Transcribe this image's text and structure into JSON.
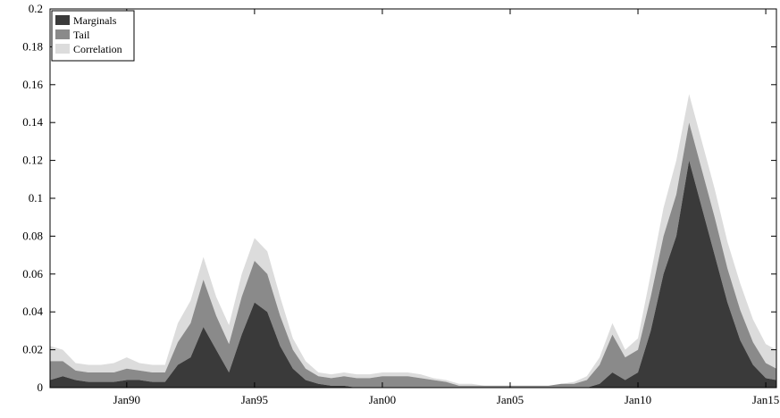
{
  "chart_data": {
    "type": "area",
    "stacked": true,
    "x_unit": "month",
    "x_ticks": [
      "Jan90",
      "Jan95",
      "Jan00",
      "Jan05",
      "Jan10",
      "Jan15"
    ],
    "x_tick_dates": [
      "1990-01",
      "1995-01",
      "2000-01",
      "2005-01",
      "2010-01",
      "2015-01"
    ],
    "xlim": [
      "1987-01",
      "2015-06"
    ],
    "ylim": [
      0,
      0.2
    ],
    "y_ticks": [
      "0",
      "0.02",
      "0.04",
      "0.06",
      "0.08",
      "0.1",
      "0.12",
      "0.14",
      "0.16",
      "0.18",
      "0.2"
    ],
    "y_tick_values": [
      0,
      0.02,
      0.04,
      0.06,
      0.08,
      0.1,
      0.12,
      0.14,
      0.16,
      0.18,
      0.2
    ],
    "grid": false,
    "legend_position": "top-left",
    "x": [
      "1987-01",
      "1987-07",
      "1988-01",
      "1988-07",
      "1989-01",
      "1989-07",
      "1990-01",
      "1990-07",
      "1991-01",
      "1991-07",
      "1992-01",
      "1992-07",
      "1993-01",
      "1993-07",
      "1994-01",
      "1994-07",
      "1995-01",
      "1995-07",
      "1996-01",
      "1996-07",
      "1997-01",
      "1997-07",
      "1998-01",
      "1998-07",
      "1999-01",
      "1999-07",
      "2000-01",
      "2000-07",
      "2001-01",
      "2001-07",
      "2002-01",
      "2002-07",
      "2003-01",
      "2003-07",
      "2004-01",
      "2004-07",
      "2005-01",
      "2005-07",
      "2006-01",
      "2006-07",
      "2007-01",
      "2007-07",
      "2008-01",
      "2008-07",
      "2009-01",
      "2009-07",
      "2010-01",
      "2010-07",
      "2011-01",
      "2011-07",
      "2012-01",
      "2012-07",
      "2013-01",
      "2013-07",
      "2014-01",
      "2014-07",
      "2015-01",
      "2015-06"
    ],
    "series": [
      {
        "name": "Marginals",
        "color": "#3a3a3a",
        "values": [
          0.004,
          0.006,
          0.004,
          0.003,
          0.003,
          0.003,
          0.004,
          0.004,
          0.003,
          0.003,
          0.012,
          0.016,
          0.032,
          0.02,
          0.008,
          0.028,
          0.045,
          0.04,
          0.022,
          0.01,
          0.004,
          0.002,
          0.001,
          0.001,
          0.0,
          0.0,
          0.0,
          0.0,
          0.0,
          0.0,
          0.0,
          0.0,
          0.0,
          0.0,
          0.0,
          0.0,
          0.0,
          0.0,
          0.0,
          0.0,
          0.0,
          0.0,
          0.0,
          0.002,
          0.008,
          0.004,
          0.008,
          0.03,
          0.06,
          0.08,
          0.12,
          0.095,
          0.07,
          0.045,
          0.025,
          0.012,
          0.005,
          0.004
        ]
      },
      {
        "name": "Tail",
        "color": "#8a8a8a",
        "values": [
          0.01,
          0.008,
          0.005,
          0.005,
          0.005,
          0.005,
          0.006,
          0.005,
          0.005,
          0.005,
          0.012,
          0.018,
          0.025,
          0.018,
          0.015,
          0.02,
          0.022,
          0.02,
          0.016,
          0.01,
          0.006,
          0.004,
          0.004,
          0.005,
          0.005,
          0.005,
          0.006,
          0.006,
          0.006,
          0.005,
          0.004,
          0.003,
          0.001,
          0.001,
          0.001,
          0.001,
          0.001,
          0.001,
          0.001,
          0.001,
          0.002,
          0.002,
          0.004,
          0.01,
          0.02,
          0.012,
          0.012,
          0.018,
          0.02,
          0.022,
          0.02,
          0.02,
          0.02,
          0.018,
          0.016,
          0.012,
          0.008,
          0.006
        ]
      },
      {
        "name": "Correlation",
        "color": "#dcdcdc",
        "values": [
          0.008,
          0.006,
          0.004,
          0.004,
          0.004,
          0.005,
          0.006,
          0.004,
          0.004,
          0.004,
          0.01,
          0.012,
          0.012,
          0.01,
          0.01,
          0.012,
          0.012,
          0.012,
          0.01,
          0.006,
          0.004,
          0.002,
          0.002,
          0.002,
          0.002,
          0.002,
          0.002,
          0.002,
          0.002,
          0.002,
          0.001,
          0.001,
          0.001,
          0.001,
          0.0,
          0.0,
          0.0,
          0.0,
          0.0,
          0.0,
          0.0,
          0.001,
          0.002,
          0.004,
          0.006,
          0.004,
          0.006,
          0.012,
          0.015,
          0.018,
          0.015,
          0.015,
          0.015,
          0.014,
          0.014,
          0.012,
          0.01,
          0.01
        ]
      }
    ]
  }
}
